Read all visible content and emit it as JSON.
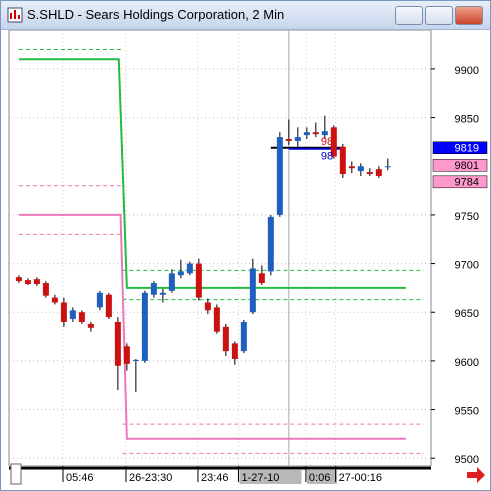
{
  "window": {
    "title": "S.SHLD - Sears Holdings Corporation, 2 Min"
  },
  "chart_data": {
    "type": "candlestick",
    "up_color": "#1f5fbf",
    "down_color": "#cc1111",
    "open": [
      9686,
      9683,
      9684,
      9680,
      9665,
      9660,
      9643,
      9650,
      9638,
      9655,
      9668,
      9640,
      9615,
      9600,
      9600,
      9668,
      9668,
      9672,
      9688,
      9690,
      9700,
      9660,
      9655,
      9635,
      9618,
      9610,
      9650,
      9690,
      9692,
      9750,
      9828,
      9826,
      9832,
      9835,
      9832,
      9840,
      9820,
      9800,
      9795,
      9794,
      9797,
      9800
    ],
    "high": [
      9688,
      9685,
      9686,
      9682,
      9668,
      9665,
      9655,
      9652,
      9640,
      9672,
      9670,
      9645,
      9618,
      9602,
      9672,
      9682,
      9674,
      9694,
      9704,
      9702,
      9705,
      9664,
      9658,
      9638,
      9620,
      9642,
      9705,
      9698,
      9750,
      9835,
      9848,
      9840,
      9840,
      9845,
      9852,
      9842,
      9823,
      9805,
      9803,
      9798,
      9800,
      9808
    ],
    "low": [
      9680,
      9678,
      9677,
      9665,
      9658,
      9635,
      9640,
      9638,
      9630,
      9652,
      9643,
      9570,
      9590,
      9568,
      9598,
      9665,
      9660,
      9670,
      9685,
      9688,
      9662,
      9648,
      9628,
      9605,
      9596,
      9608,
      9648,
      9678,
      9688,
      9748,
      9822,
      9820,
      9828,
      9830,
      9828,
      9808,
      9788,
      9793,
      9790,
      9790,
      9788,
      9796
    ],
    "close": [
      9682,
      9679,
      9679,
      9667,
      9660,
      9640,
      9652,
      9640,
      9634,
      9670,
      9645,
      9595,
      9597,
      9601,
      9670,
      9680,
      9670,
      9690,
      9692,
      9700,
      9665,
      9652,
      9630,
      9610,
      9602,
      9640,
      9695,
      9680,
      9748,
      9830,
      9826,
      9830,
      9835,
      9833,
      9836,
      9810,
      9792,
      9798,
      9800,
      9792,
      9790,
      9800
    ],
    "xlim": [
      -1.1,
      45.8
    ],
    "xticks": [
      {
        "value": 4.9,
        "label": "05:46"
      },
      {
        "value": 11.9,
        "label": "26-23:30"
      },
      {
        "value": 19.9,
        "label": "23:46"
      },
      {
        "value": 24.4,
        "label": "1-27-10"
      },
      {
        "value": 31.9,
        "label": "0:06"
      },
      {
        "value": 35.2,
        "label": "27-00:16"
      }
    ],
    "ylim": [
      9492,
      9940
    ],
    "yticks": [
      9500,
      9550,
      9600,
      9650,
      9700,
      9750,
      9850,
      9900
    ],
    "grid": true,
    "overlays": [
      {
        "color": "#22bb44",
        "dash": false,
        "x": [
          0,
          11.1,
          12,
          43
        ],
        "values": [
          9910,
          9910,
          9675,
          9675
        ]
      },
      {
        "color": "#22bb44",
        "dash": true,
        "x": [
          0,
          11.5
        ],
        "values": [
          9920,
          9920
        ]
      },
      {
        "color": "#22bb44",
        "dash": true,
        "x": [
          11.5,
          45
        ],
        "values": [
          9693,
          9693
        ]
      },
      {
        "color": "#22bb44",
        "dash": true,
        "x": [
          11.5,
          45
        ],
        "values": [
          9663,
          9663
        ]
      },
      {
        "color": "#ee77bb",
        "dash": false,
        "x": [
          0,
          11.3,
          12,
          43
        ],
        "values": [
          9750,
          9750,
          9520,
          9520
        ]
      },
      {
        "color": "#ee77bb",
        "dash": true,
        "x": [
          0,
          11.5
        ],
        "values": [
          9780,
          9780
        ]
      },
      {
        "color": "#ee77bb",
        "dash": true,
        "x": [
          0,
          11.5
        ],
        "values": [
          9730,
          9730
        ]
      },
      {
        "color": "#ee77bb",
        "dash": true,
        "x": [
          11.5,
          45
        ],
        "values": [
          9535,
          9535
        ]
      },
      {
        "color": "#ee77bb",
        "dash": true,
        "x": [
          11.5,
          45
        ],
        "values": [
          9505,
          9505
        ]
      },
      {
        "color": "#000000",
        "dash": false,
        "x": [
          28,
          36
        ],
        "values": [
          9819,
          9819
        ]
      },
      {
        "color": "#0000cc",
        "dash": false,
        "x": [
          30,
          36
        ],
        "values": [
          9818,
          9818
        ]
      }
    ],
    "annotations": [
      {
        "text": "98",
        "color": "#cc1111"
      },
      {
        "text": "98",
        "color": "#0000cc"
      }
    ],
    "price_tags": [
      {
        "value": 9819,
        "color": "#0000ff",
        "text_color": "#ffffff"
      },
      {
        "value": 9801,
        "color": "#ff99cc",
        "text_color": "#000000"
      },
      {
        "value": 9784,
        "color": "#ff99cc",
        "text_color": "#000000"
      }
    ]
  }
}
